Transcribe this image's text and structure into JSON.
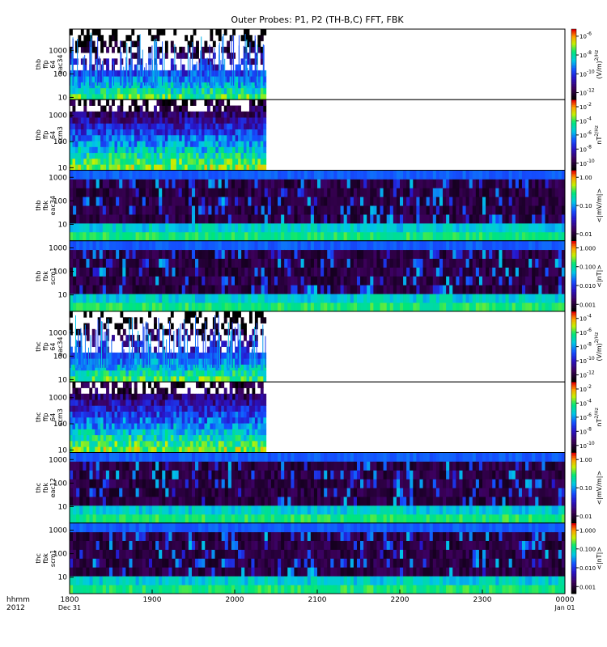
{
  "chart_data": {
    "type": "heatmap",
    "title": "Outer Probes: P1, P2 (TH-B,C) FFT, FBK",
    "time_axis": {
      "label_line1": "hhmm",
      "label_line2": "2012",
      "ticks": [
        "1800",
        "1900",
        "2000",
        "2100",
        "2200",
        "2300",
        "0000"
      ],
      "tick_dates": [
        "Dec 31",
        "",
        "",
        "",
        "",
        "",
        "Jan 01"
      ],
      "range_hours": [
        18,
        24
      ]
    },
    "panels": [
      {
        "id": "thb-ffp-eac34",
        "ylabel": [
          "thb",
          "ffp",
          "64",
          "eac34"
        ],
        "yticks": [
          "1000",
          "100",
          "10"
        ],
        "yrange": [
          8,
          8000
        ],
        "data_end_hour": 20.38,
        "colormap": "rainbow",
        "cbar_label": "(V/m)^2/Hz",
        "cbar_ticks": [
          "10^-6",
          "10^-8",
          "10^-10",
          "10^-12"
        ]
      },
      {
        "id": "thb-ffp-scm3",
        "ylabel": [
          "thb",
          "ffp",
          "64",
          "scm3"
        ],
        "yticks": [
          "1000",
          "100",
          "10"
        ],
        "yrange": [
          8,
          4000
        ],
        "data_end_hour": 20.38,
        "colormap": "rainbow",
        "cbar_label": "nT^2/Hz",
        "cbar_ticks": [
          "10^-2",
          "10^-4",
          "10^-6",
          "10^-8",
          "10^-10"
        ]
      },
      {
        "id": "thb-fbk-eac34",
        "ylabel": [
          "thb",
          "fbk",
          "eac34"
        ],
        "yticks": [
          "1000",
          "100",
          "10"
        ],
        "yrange": [
          2,
          2000
        ],
        "data_end_hour": 24.0,
        "colormap": "rainbow",
        "cbar_label": "<|mV/m|>",
        "cbar_ticks": [
          "1.00",
          "0.10",
          "0.01"
        ]
      },
      {
        "id": "thb-fbk-scm1",
        "ylabel": [
          "thb",
          "fbk",
          "scm1"
        ],
        "yticks": [
          "1000",
          "100",
          "10"
        ],
        "yrange": [
          2,
          2000
        ],
        "data_end_hour": 24.0,
        "colormap": "rainbow",
        "cbar_label": "<|nT|>",
        "cbar_ticks": [
          "1.000",
          "0.100",
          "0.010",
          "0.001"
        ]
      },
      {
        "id": "thc-ffp-eac34",
        "ylabel": [
          "thc",
          "ffp",
          "64",
          "eac34"
        ],
        "yticks": [
          "1000",
          "100",
          "10"
        ],
        "yrange": [
          8,
          8000
        ],
        "data_end_hour": 20.38,
        "colormap": "rainbow",
        "cbar_label": "(V/m)^2/Hz",
        "cbar_ticks": [
          "10^-4",
          "10^-6",
          "10^-8",
          "10^-10",
          "10^-12"
        ]
      },
      {
        "id": "thc-ffp-scm3",
        "ylabel": [
          "thc",
          "ffp",
          "64",
          "scm3"
        ],
        "yticks": [
          "1000",
          "100",
          "10"
        ],
        "yrange": [
          8,
          4000
        ],
        "data_end_hour": 20.38,
        "colormap": "rainbow",
        "cbar_label": "nT^2/Hz",
        "cbar_ticks": [
          "10^-2",
          "10^-4",
          "10^-6",
          "10^-8",
          "10^-10"
        ]
      },
      {
        "id": "thc-fbk-eac12",
        "ylabel": [
          "thc",
          "fbk",
          "eac12"
        ],
        "yticks": [
          "1000",
          "100",
          "10"
        ],
        "yrange": [
          2,
          2000
        ],
        "data_end_hour": 24.0,
        "colormap": "rainbow",
        "cbar_label": "<|mV/m|>",
        "cbar_ticks": [
          "1.00",
          "0.10",
          "0.01"
        ]
      },
      {
        "id": "thc-fbk-scm1",
        "ylabel": [
          "thc",
          "fbk",
          "scm1"
        ],
        "yticks": [
          "1000",
          "100",
          "10"
        ],
        "yrange": [
          2,
          2000
        ],
        "data_end_hour": 24.0,
        "colormap": "rainbow",
        "cbar_label": "<|nT|>",
        "cbar_ticks": [
          "1.000",
          "0.100",
          "0.010",
          "0.001"
        ]
      }
    ]
  }
}
